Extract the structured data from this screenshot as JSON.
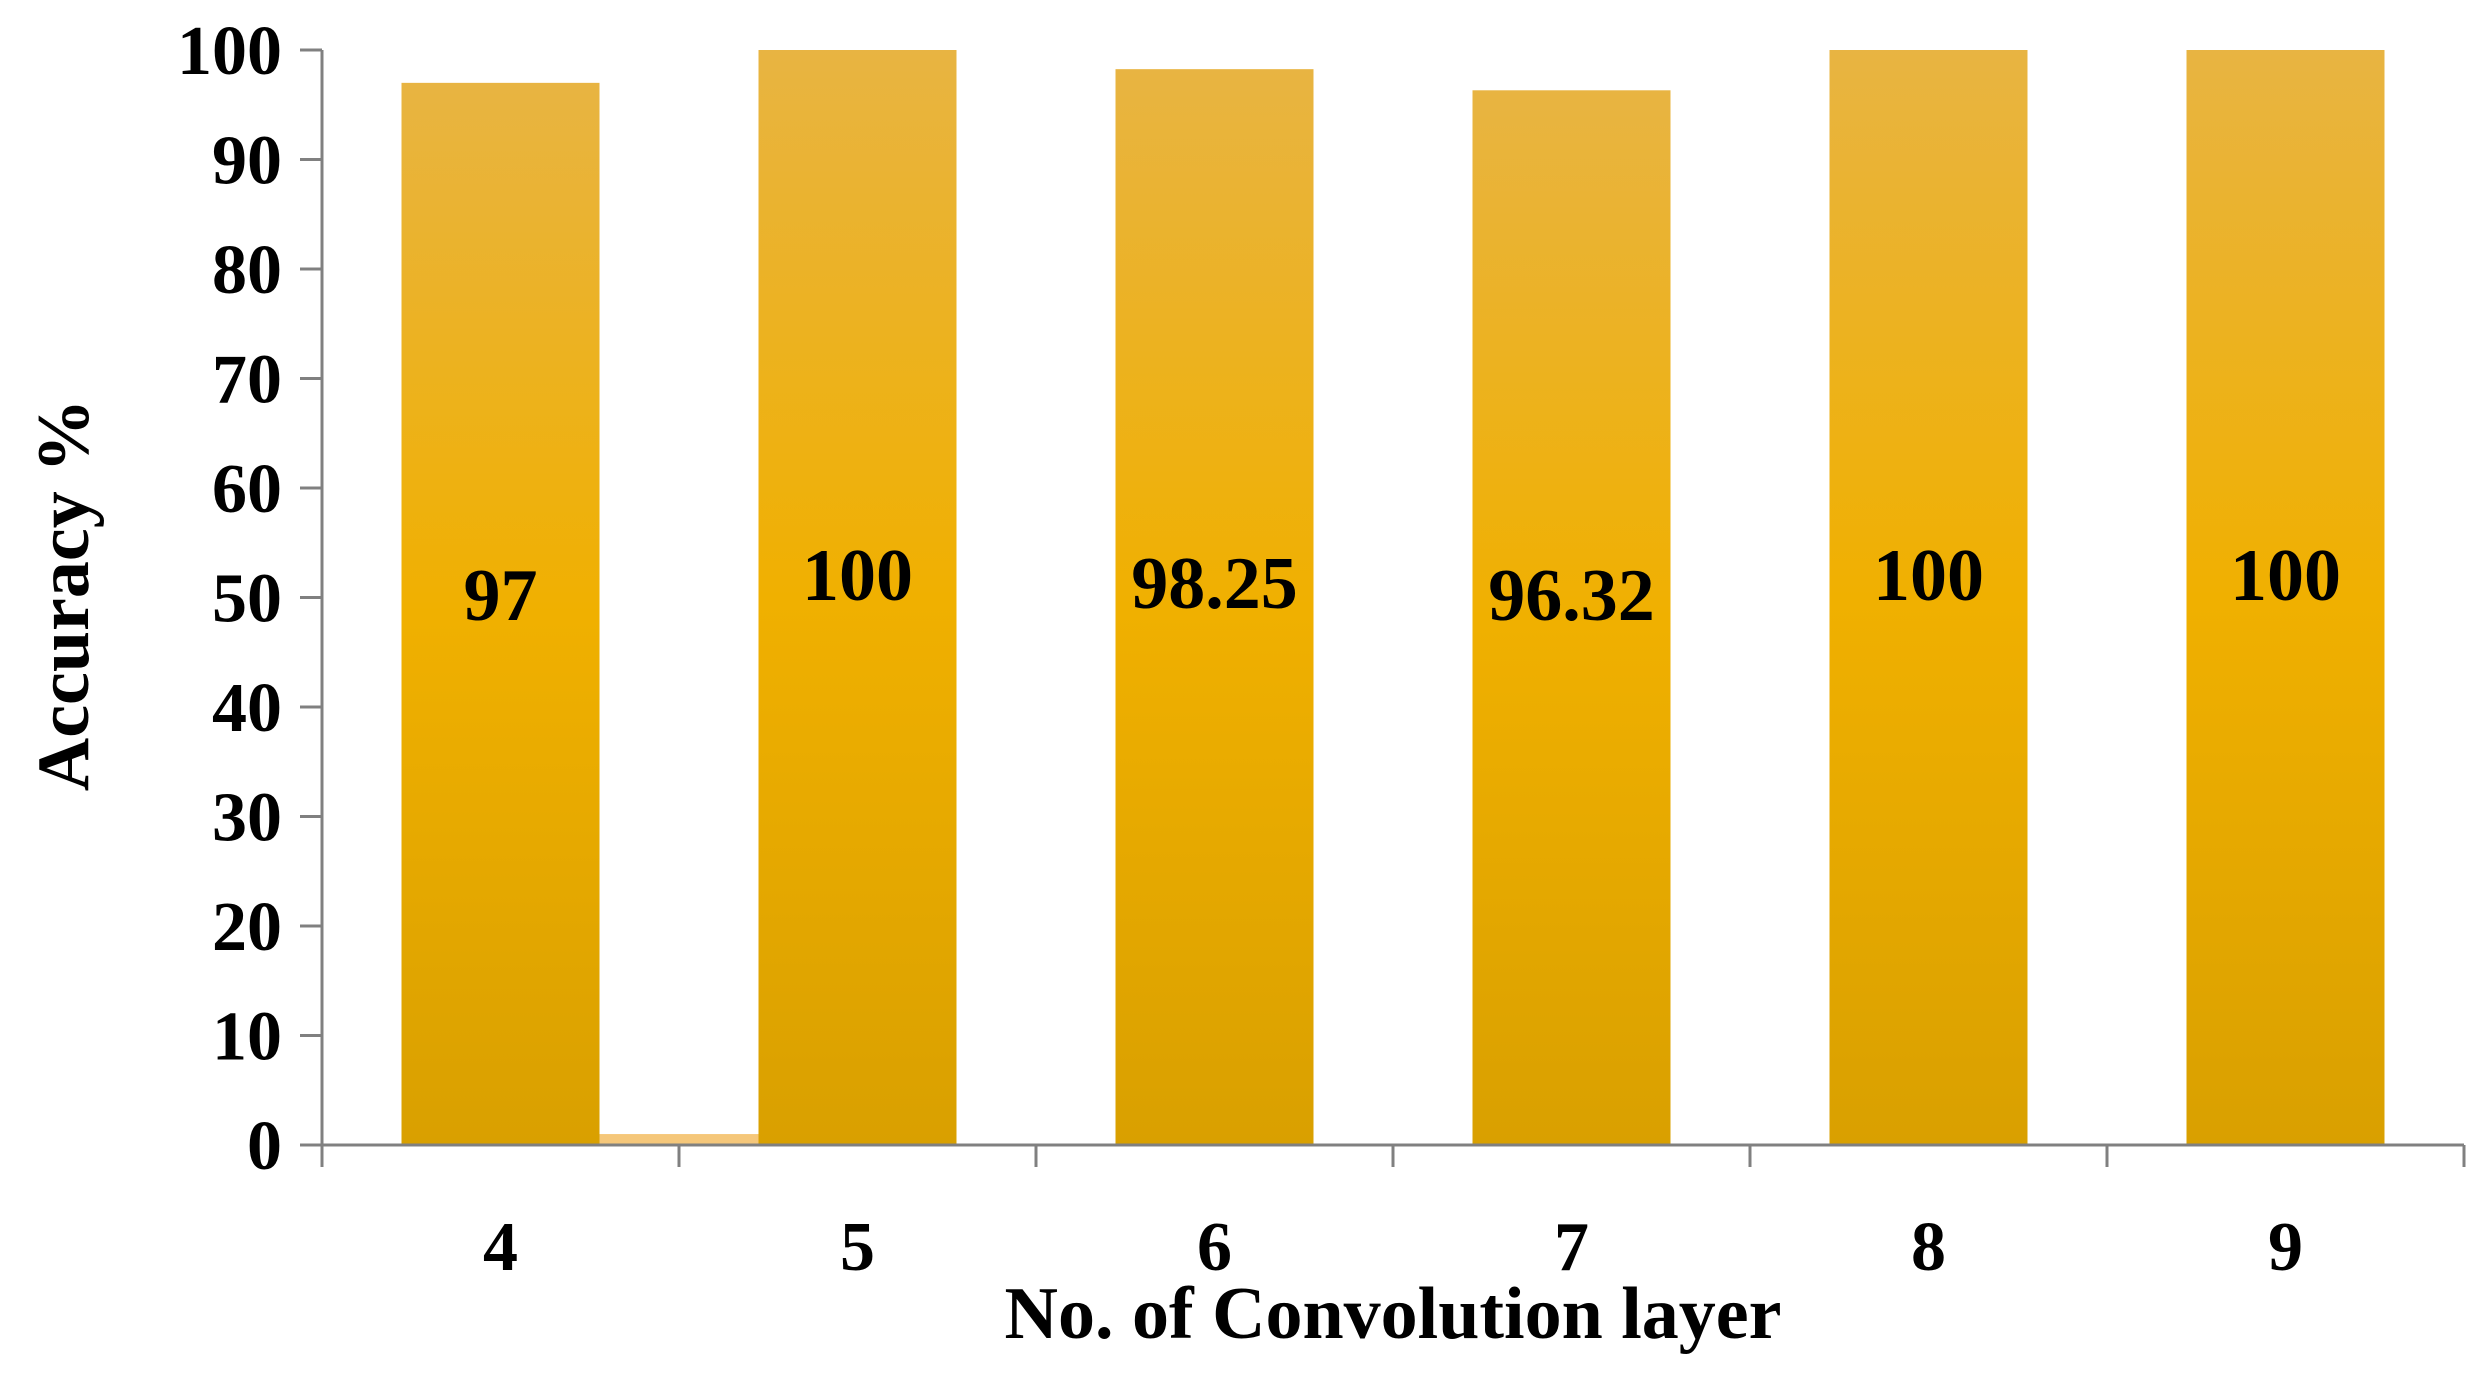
{
  "chart_data": {
    "type": "bar",
    "title": "",
    "xlabel": "No. of Convolution layer",
    "ylabel": "Accuracy %",
    "categories": [
      "4",
      "5",
      "6",
      "7",
      "8",
      "9"
    ],
    "series": [
      {
        "values": [
          97,
          100,
          98.25,
          96.32,
          100,
          100
        ]
      }
    ],
    "data_labels": [
      "97",
      "100",
      "98.25",
      "96.32",
      "100",
      "100"
    ],
    "secondary_bar": {
      "between_categories": [
        "4",
        "5"
      ],
      "value": 1
    },
    "ylim": [
      0,
      100
    ],
    "yticks": [
      0,
      10,
      20,
      30,
      40,
      50,
      60,
      70,
      80,
      90,
      100
    ],
    "grid": false,
    "legend": "none",
    "colors": {
      "bar_top": "#e8b442",
      "bar_mid": "#f0b000",
      "bar_bottom": "#d9a000",
      "secondary_bar": "#f5c77a",
      "axis": "#808080"
    }
  }
}
